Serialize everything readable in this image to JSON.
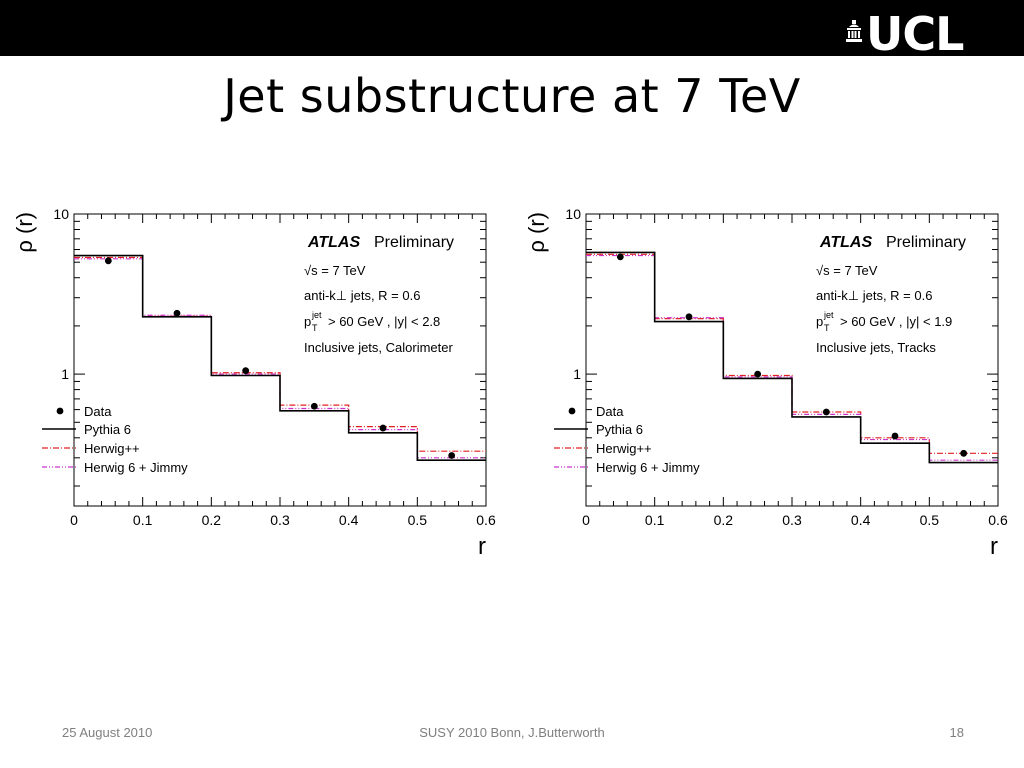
{
  "logo": {
    "text": "UCL"
  },
  "slide": {
    "title": "Jet substructure at 7 TeV"
  },
  "footer": {
    "date": "25 August 2010",
    "center": "SUSY 2010 Bonn, J.Butterworth",
    "page": "18"
  },
  "chart_data": [
    {
      "type": "line",
      "scale": "log-y",
      "x_edges": [
        0,
        0.1,
        0.2,
        0.3,
        0.4,
        0.5,
        0.6
      ],
      "x_centers": [
        0.05,
        0.15,
        0.25,
        0.35,
        0.45,
        0.55
      ],
      "xlim": [
        0,
        0.6
      ],
      "ylim": [
        0.15,
        10
      ],
      "x_ticks": [
        "0",
        "0.1",
        "0.2",
        "0.3",
        "0.4",
        "0.5",
        "0.6"
      ],
      "y_ticks": [
        "1",
        "10"
      ],
      "xlabel": "r",
      "ylabel": "ρ (r)",
      "legend_position": "bottom-left",
      "annotations": {
        "atlas": "ATLAS",
        "preliminary": "Preliminary",
        "energy": "√s = 7 TeV",
        "algo": "anti-k⊥ jets, R = 0.6",
        "pt_p": "p",
        "pt_sup": "jet",
        "pt_sub": "T",
        "pt_rest": "> 60 GeV , |y| < 2.8",
        "sample": "Inclusive jets, Calorimeter"
      },
      "series": [
        {
          "name": "Data",
          "style": "points",
          "color": "#000000",
          "values": [
            5.1,
            2.4,
            1.05,
            0.63,
            0.46,
            0.31
          ]
        },
        {
          "name": "Pythia 6",
          "style": "solid",
          "color": "#000000",
          "values": [
            5.5,
            2.28,
            0.98,
            0.59,
            0.43,
            0.29
          ]
        },
        {
          "name": "Herwig++",
          "style": "dashdot",
          "color": "#e02020",
          "values": [
            5.35,
            2.3,
            1.02,
            0.64,
            0.47,
            0.33
          ]
        },
        {
          "name": "Herwig 6 + Jimmy",
          "style": "dashdotdot",
          "color": "#cc33cc",
          "values": [
            5.25,
            2.33,
            1.0,
            0.61,
            0.45,
            0.3
          ]
        }
      ]
    },
    {
      "type": "line",
      "scale": "log-y",
      "x_edges": [
        0,
        0.1,
        0.2,
        0.3,
        0.4,
        0.5,
        0.6
      ],
      "x_centers": [
        0.05,
        0.15,
        0.25,
        0.35,
        0.45,
        0.55
      ],
      "xlim": [
        0,
        0.6
      ],
      "ylim": [
        0.15,
        10
      ],
      "x_ticks": [
        "0",
        "0.1",
        "0.2",
        "0.3",
        "0.4",
        "0.5",
        "0.6"
      ],
      "y_ticks": [
        "1",
        "10"
      ],
      "xlabel": "r",
      "ylabel": "ρ (r)",
      "legend_position": "bottom-left",
      "annotations": {
        "atlas": "ATLAS",
        "preliminary": "Preliminary",
        "energy": "√s = 7 TeV",
        "algo": "anti-k⊥ jets, R = 0.6",
        "pt_p": "p",
        "pt_sup": "jet",
        "pt_sub": "T",
        "pt_rest": "> 60 GeV , |y| < 1.9",
        "sample": "Inclusive jets, Tracks"
      },
      "series": [
        {
          "name": "Data",
          "style": "points",
          "color": "#000000",
          "values": [
            5.4,
            2.28,
            1.0,
            0.58,
            0.41,
            0.32
          ]
        },
        {
          "name": "Pythia 6",
          "style": "solid",
          "color": "#000000",
          "values": [
            5.75,
            2.13,
            0.94,
            0.54,
            0.37,
            0.28
          ]
        },
        {
          "name": "Herwig++",
          "style": "dashdot",
          "color": "#e02020",
          "values": [
            5.6,
            2.22,
            0.98,
            0.58,
            0.4,
            0.32
          ]
        },
        {
          "name": "Herwig 6 + Jimmy",
          "style": "dashdotdot",
          "color": "#cc33cc",
          "values": [
            5.5,
            2.25,
            0.96,
            0.56,
            0.39,
            0.29
          ]
        }
      ]
    }
  ]
}
